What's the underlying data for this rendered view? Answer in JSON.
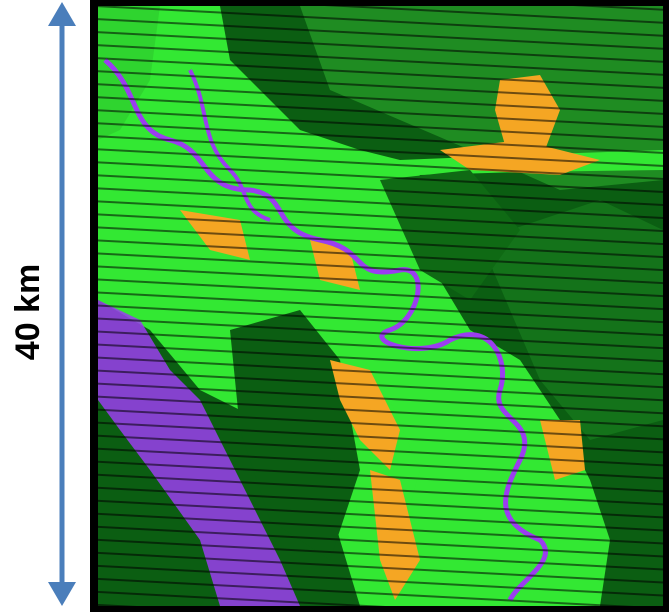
{
  "scale_bar": {
    "label": "40 km"
  }
}
